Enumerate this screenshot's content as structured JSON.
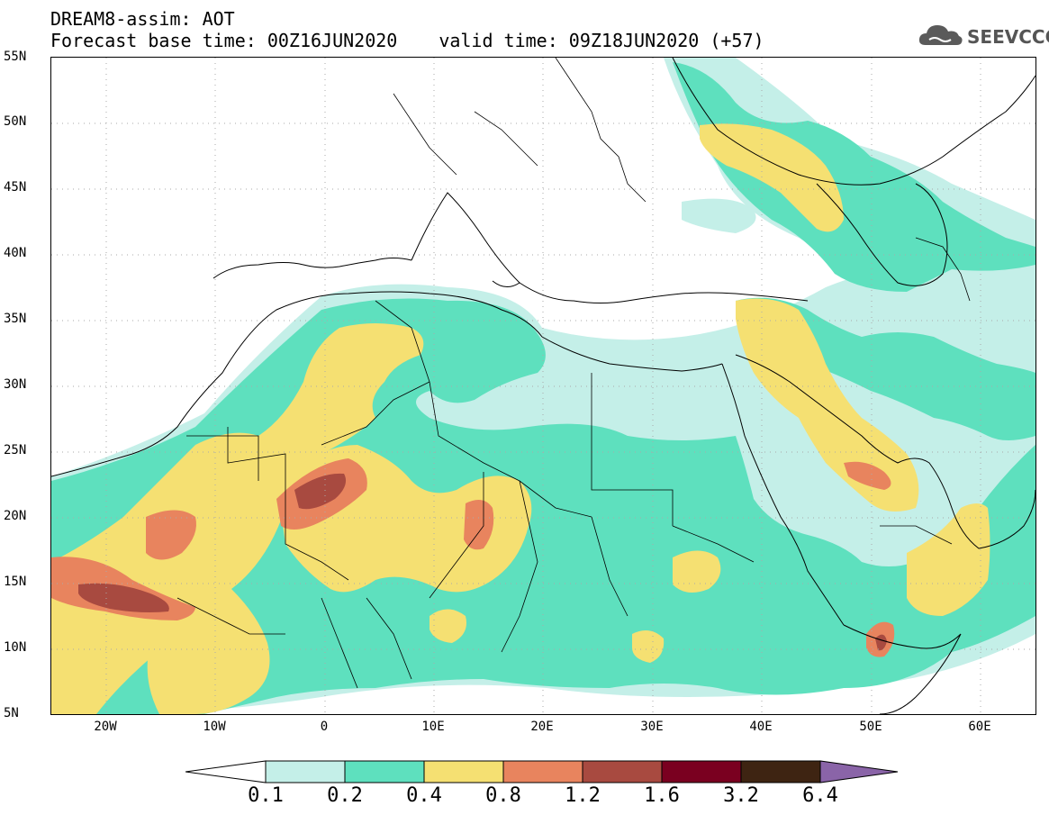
{
  "header": {
    "title": "DREAM8-assim: AOT",
    "base_time": "Forecast base time: 00Z16JUN2020",
    "valid_time": "valid time: 09Z18JUN2020 (+57)",
    "logo_text": "SEEVCCC"
  },
  "map": {
    "latitude_labels": [
      "55N",
      "50N",
      "45N",
      "40N",
      "35N",
      "30N",
      "25N",
      "20N",
      "15N",
      "10N",
      "5N"
    ],
    "longitude_labels": [
      "20W",
      "10W",
      "0",
      "10E",
      "20E",
      "30E",
      "40E",
      "50E",
      "60E"
    ],
    "extent": {
      "lon_min": -25,
      "lon_max": 65,
      "lat_min": 5,
      "lat_max": 55
    },
    "gridlines": "dotted"
  },
  "legend": {
    "ticks": [
      "0.1",
      "0.2",
      "0.4",
      "0.8",
      "1.2",
      "1.6",
      "3.2",
      "6.4"
    ],
    "colors": [
      "#ffffff",
      "#c4efe8",
      "#5ee0be",
      "#f5e072",
      "#e8845e",
      "#a84a40",
      "#7a0020",
      "#3e2412",
      "#8a64a8"
    ]
  }
}
